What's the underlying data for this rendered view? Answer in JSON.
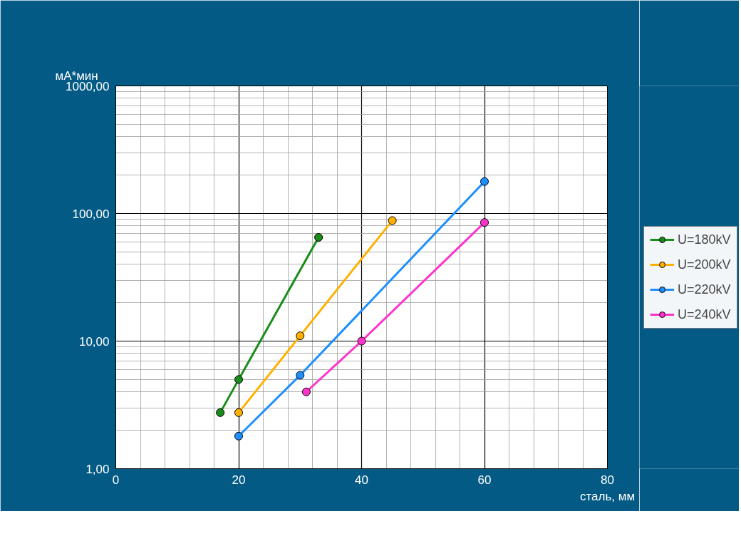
{
  "chart_data": {
    "type": "line",
    "xlabel": "сталь, мм",
    "ylabel": "мА*мин",
    "log": "y",
    "xlim": [
      0,
      80
    ],
    "ylim": [
      1,
      1000
    ],
    "xticks": [
      0,
      20,
      40,
      60,
      80
    ],
    "yticks": [
      {
        "value": 1,
        "label": "1,00"
      },
      {
        "value": 10,
        "label": "10,00"
      },
      {
        "value": 100,
        "label": "100,00"
      },
      {
        "value": 1000,
        "label": "1000,00"
      }
    ],
    "grid": true,
    "legend": "right",
    "marker": "circle",
    "line_style": "solid",
    "series": [
      {
        "name": "U=180kV",
        "color": "#1a8c1a",
        "x": [
          17,
          20,
          33
        ],
        "values": [
          2.75,
          5,
          65
        ]
      },
      {
        "name": "U=200kV",
        "color": "#ffb000",
        "x": [
          20,
          30,
          45
        ],
        "values": [
          2.75,
          11,
          88
        ]
      },
      {
        "name": "U=220kV",
        "color": "#1e8fff",
        "x": [
          20,
          30,
          60
        ],
        "values": [
          1.8,
          5.4,
          178
        ]
      },
      {
        "name": "U=240kV",
        "color": "#ff33cc",
        "x": [
          31,
          40,
          60
        ],
        "values": [
          4,
          10,
          85
        ]
      }
    ]
  }
}
